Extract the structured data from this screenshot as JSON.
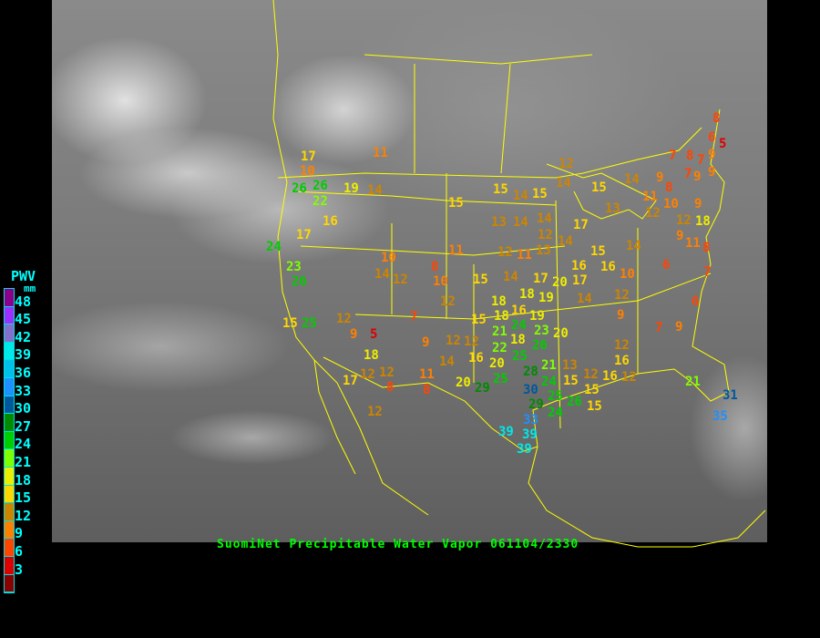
{
  "caption": "SuomiNet Precipitable Water Vapor 061104/2330",
  "legend": {
    "title": "PWV",
    "unit": "mm",
    "labels": [
      "48",
      "45",
      "42",
      "39",
      "36",
      "33",
      "30",
      "27",
      "24",
      "21",
      "18",
      "15",
      "12",
      "9",
      "6",
      "3"
    ],
    "colors_top_to_bottom": [
      "#8b008b",
      "#9b30ff",
      "#8470cc",
      "#00e8e8",
      "#00bfe8",
      "#1e90ff",
      "#00589c",
      "#008b00",
      "#00cd00",
      "#7fff00",
      "#eeee00",
      "#ffd700",
      "#cd8500",
      "#ff8000",
      "#ff4500",
      "#dd0000",
      "#8b0000"
    ],
    "bin_width_mm": 3
  },
  "stations_pwv_mm": [
    11,
    17,
    10,
    26,
    26,
    22,
    19,
    14,
    16,
    17,
    24,
    23,
    26,
    15,
    25,
    12,
    9,
    5,
    18,
    12,
    12,
    8,
    17,
    12,
    7,
    9,
    14,
    11,
    8,
    12,
    10,
    14,
    12,
    8,
    10,
    12,
    15,
    11,
    15,
    14,
    17,
    20,
    18,
    19,
    18,
    16,
    19,
    24,
    18,
    21,
    23,
    15,
    18,
    22,
    25,
    26,
    20,
    12,
    16,
    20,
    25,
    29,
    20,
    28,
    21,
    24,
    30,
    29,
    25,
    24,
    26,
    33,
    39,
    39,
    39,
    13,
    15,
    12,
    15,
    15,
    16,
    12,
    16,
    12,
    9,
    7,
    9,
    12,
    14,
    17,
    16,
    15,
    16,
    10,
    14,
    8,
    6,
    7,
    6,
    21,
    31,
    35,
    15,
    14,
    15,
    13,
    14,
    14,
    12,
    11,
    13,
    12,
    14,
    17,
    12,
    14,
    15,
    13,
    14,
    11,
    7,
    8,
    7,
    9,
    9,
    7,
    9,
    9,
    8,
    12,
    10,
    8,
    6,
    5,
    12,
    9,
    11,
    9,
    18
  ]
}
